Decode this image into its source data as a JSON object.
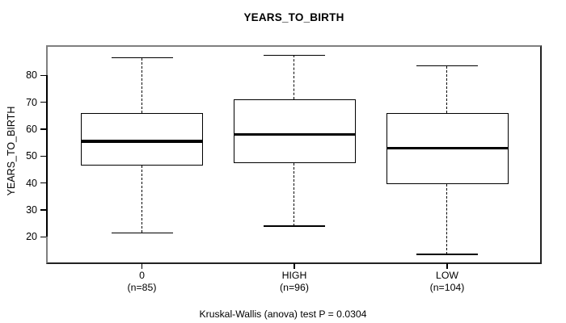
{
  "title": "YEARS_TO_BIRTH",
  "caption": "Kruskal-Wallis (anova) test P = 0.0304",
  "chart_data": {
    "type": "boxplot",
    "title": "YEARS_TO_BIRTH",
    "ylabel": "YEARS_TO_BIRTH",
    "xlabel": "",
    "ylim": [
      10.5,
      90.6
    ],
    "yticks": [
      20,
      30,
      40,
      50,
      60,
      70,
      80
    ],
    "grid": false,
    "legend": "none",
    "annotation": "Kruskal-Wallis (anova) test P = 0.0304",
    "groups": [
      {
        "label": "0",
        "sublabel": "(n=85)",
        "n": 85,
        "whisker_low": 21.5,
        "q1": 46.5,
        "median": 55.5,
        "q3": 66,
        "whisker_high": 86.5
      },
      {
        "label": "HIGH",
        "sublabel": "(n=96)",
        "n": 96,
        "whisker_low": 24,
        "q1": 47.5,
        "median": 58,
        "q3": 71,
        "whisker_high": 87.5
      },
      {
        "label": "LOW",
        "sublabel": "(n=104)",
        "n": 104,
        "whisker_low": 13.5,
        "q1": 39.5,
        "median": 53,
        "q3": 66,
        "whisker_high": 83.5
      }
    ],
    "colors": {
      "line": "#000000",
      "box_fill": "#ffffff",
      "median": "#000000",
      "frame": "#7f7f7f",
      "background": "#ffffff"
    }
  }
}
